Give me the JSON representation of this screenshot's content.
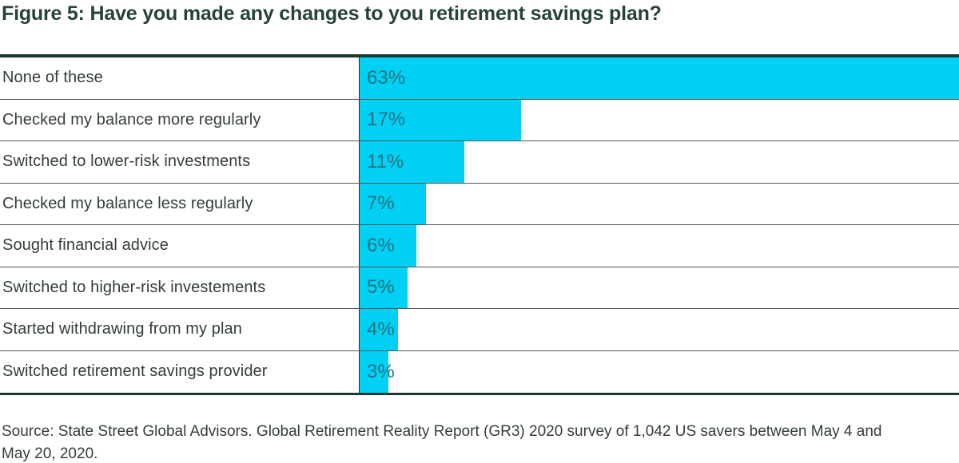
{
  "title": "Figure 5: Have you made any changes to you retirement savings plan?",
  "source": "Source: State Street Global Advisors. Global Retirement Reality Report (GR3) 2020 survey of 1,042 US savers between May 4 and May 20, 2020.",
  "colors": {
    "bar": "#00d1f4",
    "title_text": "#27423b",
    "label_text": "#333d3b",
    "value_text": "#20707f",
    "border": "#1d3833",
    "separator": "#555555",
    "axis": "#2b2b2b"
  },
  "chart_data": {
    "type": "bar",
    "orientation": "horizontal",
    "title": "Figure 5: Have you made any changes to you retirement savings plan?",
    "categories": [
      "None of these",
      "Checked my balance more regularly",
      "Switched to lower-risk investments",
      "Checked my balance less regularly",
      "Sought financial advice",
      "Switched to higher-risk investements",
      "Started withdrawing from my plan",
      "Switched retirement savings provider"
    ],
    "values": [
      63,
      17,
      11,
      7,
      6,
      5,
      4,
      3
    ],
    "value_labels": [
      "63%",
      "17%",
      "11%",
      "7%",
      "6%",
      "5%",
      "4%",
      "3%"
    ],
    "xlabel": "",
    "ylabel": "",
    "xlim": [
      0,
      63
    ],
    "grid": false,
    "legend": false,
    "value_label_position": "inside-start"
  }
}
